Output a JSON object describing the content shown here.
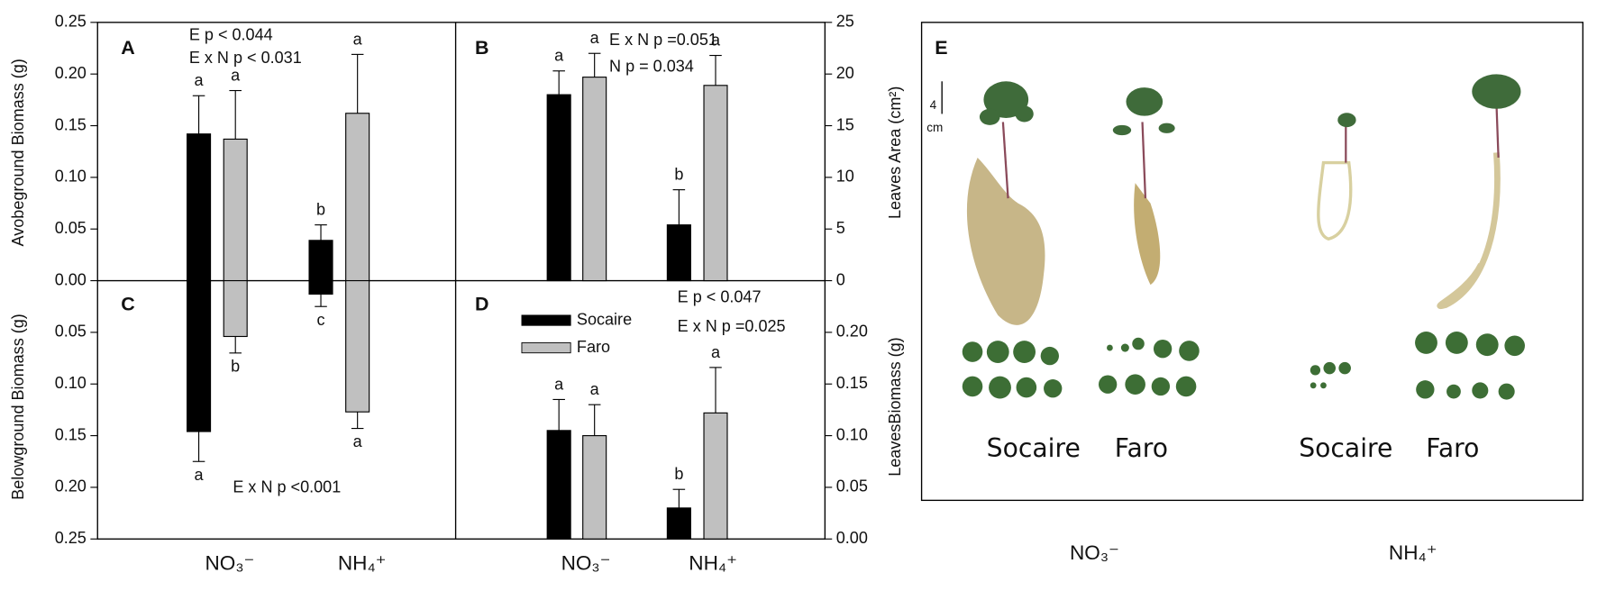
{
  "chart_data": [
    {
      "type": "bar",
      "panel_label": "A",
      "ylabel": "Avobeground Biomass (g)",
      "annotations": [
        "E p < 0.044",
        "E x N p < 0.031"
      ],
      "ylim": [
        0,
        0.25
      ],
      "yticks": [
        {
          "value": 0,
          "label": "0.00"
        },
        0.05,
        {
          "value": 0.1,
          "label": "0.10"
        },
        0.15,
        {
          "value": 0.2,
          "label": "0.20"
        },
        0.25
      ],
      "series": [
        {
          "color": "#000000",
          "values": [
            0.142,
            0.039
          ],
          "errors": [
            0.037,
            0.015
          ],
          "letters": [
            "a",
            "b"
          ]
        },
        {
          "color": "#c0c0c0",
          "values": [
            0.137,
            0.162
          ],
          "errors": [
            0.047,
            0.057
          ],
          "letters": [
            "a",
            "a"
          ]
        }
      ]
    },
    {
      "type": "bar",
      "panel_label": "B",
      "y2label": "Leaves Area (cm²)",
      "annotations": [
        "E x N p =0.051",
        "N p = 0.034"
      ],
      "ylim": [
        0,
        25
      ],
      "yticks": [
        0,
        5,
        10,
        15,
        20,
        25
      ],
      "series": [
        {
          "color": "#000000",
          "values": [
            18,
            5.4
          ],
          "errors": [
            2.3,
            3.4
          ],
          "letters": [
            "a",
            "b"
          ]
        },
        {
          "color": "#c0c0c0",
          "values": [
            19.7,
            18.9
          ],
          "errors": [
            2.3,
            2.9
          ],
          "letters": [
            "a",
            "a"
          ]
        }
      ]
    },
    {
      "type": "bar",
      "panel_label": "C",
      "ylabel": "Belowground Biomass (g)",
      "inverted": true,
      "annotations": [
        "E x N p <0.001"
      ],
      "categories": [
        "NO₃⁻",
        "NH₄⁺"
      ],
      "ylim": [
        0,
        0.25
      ],
      "yticks": [
        0.05,
        {
          "value": 0.1,
          "label": "0.10"
        },
        0.15,
        {
          "value": 0.2,
          "label": "0.20"
        },
        0.25
      ],
      "series": [
        {
          "color": "#000000",
          "values": [
            0.146,
            0.013
          ],
          "errors": [
            0.029,
            0.012
          ],
          "letters": [
            "a",
            "c"
          ]
        },
        {
          "color": "#c0c0c0",
          "values": [
            0.054,
            0.127
          ],
          "errors": [
            0.016,
            0.016
          ],
          "letters": [
            "b",
            "a"
          ]
        }
      ]
    },
    {
      "type": "bar",
      "panel_label": "D",
      "y2label": "LeavesBiomass (g)",
      "annotations": [
        "E  p < 0.047",
        "E  x N p =0.025"
      ],
      "categories": [
        "NO₃⁻",
        "NH₄⁺"
      ],
      "ylim": [
        0,
        0.25
      ],
      "yticks": [
        {
          "value": 0,
          "label": "0.00"
        },
        0.05,
        {
          "value": 0.1,
          "label": "0.10"
        },
        0.15,
        {
          "value": 0.2,
          "label": "0.20"
        }
      ],
      "series": [
        {
          "name": "Socaire",
          "color": "#000000",
          "values": [
            0.105,
            0.03
          ],
          "errors": [
            0.03,
            0.018
          ],
          "letters": [
            "a",
            "b"
          ]
        },
        {
          "name": "Faro",
          "color": "#c0c0c0",
          "values": [
            0.1,
            0.122
          ],
          "errors": [
            0.03,
            0.044
          ],
          "letters": [
            "a",
            "a"
          ]
        }
      ]
    }
  ],
  "panel_e": {
    "label": "E",
    "scale_value": "4",
    "scale_unit": "cm",
    "cultivars": [
      "Socaire",
      "Faro",
      "Socaire",
      "Faro"
    ],
    "treatments": [
      "NO₃⁻",
      "NH₄⁺"
    ]
  }
}
